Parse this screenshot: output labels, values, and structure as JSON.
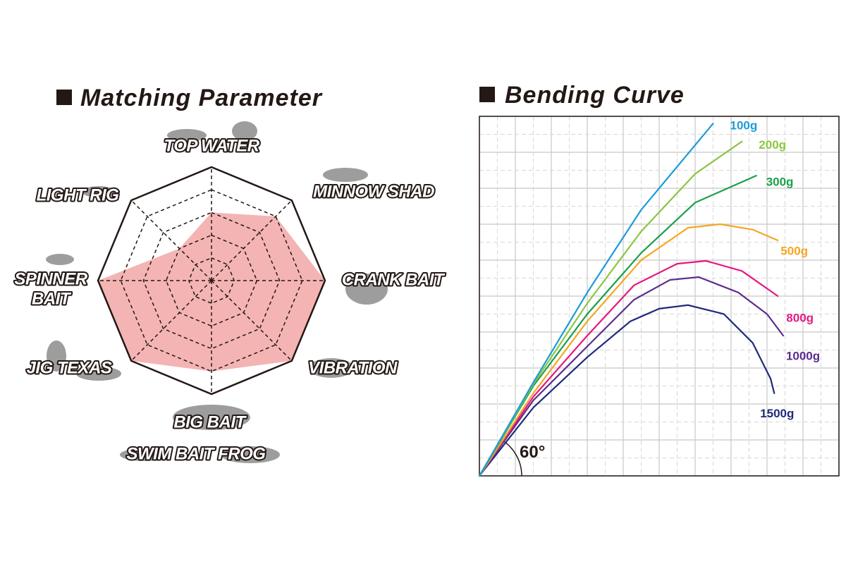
{
  "chart_data": [
    {
      "type": "radar",
      "title": "Matching Parameter",
      "categories": [
        [
          "TOP WATER"
        ],
        [
          "MINNOW SHAD"
        ],
        [
          "CRANK BAIT"
        ],
        [
          "VIBRATION"
        ],
        [
          "BIG BAIT",
          "SWIM BAIT FROG"
        ],
        [
          "JIG TEXAS"
        ],
        [
          "SPINNER",
          "BAIT"
        ],
        [
          "LIGHT RIG"
        ]
      ],
      "values": [
        3,
        4,
        5,
        5,
        4,
        5,
        5,
        2
      ],
      "rlim": [
        0,
        5
      ],
      "rticks": [
        1,
        2,
        3,
        4,
        5
      ],
      "color": "#f4b4b4"
    },
    {
      "type": "line",
      "title": "Bending Curve",
      "annotation": "60°",
      "xlim": [
        0,
        10
      ],
      "ylim": [
        0,
        10
      ],
      "xticks": [
        0,
        1,
        2,
        3,
        4,
        5,
        6,
        7,
        8,
        9,
        10
      ],
      "yticks": [
        0,
        1,
        2,
        3,
        4,
        5,
        6,
        7,
        8,
        9,
        10
      ],
      "grid": true,
      "series": [
        {
          "name": "100g",
          "color": "#1a9bd7",
          "x": [
            0,
            1.5,
            3,
            4.5,
            6.5
          ],
          "values": [
            0,
            2.6,
            5.1,
            7.4,
            9.8
          ]
        },
        {
          "name": "200g",
          "color": "#8cc63f",
          "x": [
            0,
            1.5,
            3,
            4.5,
            6,
            7.3
          ],
          "values": [
            0,
            2.55,
            4.8,
            6.8,
            8.4,
            9.3
          ]
        },
        {
          "name": "300g",
          "color": "#1aa04a",
          "x": [
            0,
            1.5,
            3,
            4.5,
            6,
            7.7
          ],
          "values": [
            0,
            2.5,
            4.5,
            6.2,
            7.6,
            8.35
          ]
        },
        {
          "name": "500g",
          "color": "#f5a623",
          "x": [
            0,
            1.5,
            3,
            4.5,
            5.8,
            6.7,
            7.6,
            8.3
          ],
          "values": [
            0,
            2.3,
            4.3,
            6.0,
            6.9,
            7.0,
            6.85,
            6.55
          ]
        },
        {
          "name": "800g",
          "color": "#e5197f",
          "x": [
            0,
            1.5,
            3,
            4.3,
            5.5,
            6.3,
            7.3,
            8.3
          ],
          "values": [
            0,
            2.2,
            3.9,
            5.3,
            5.9,
            5.98,
            5.7,
            5.0
          ]
        },
        {
          "name": "1000g",
          "color": "#5b2d8e",
          "x": [
            0,
            1.5,
            3,
            4.3,
            5.3,
            6.1,
            7.2,
            8.0,
            8.45
          ],
          "values": [
            0,
            2.1,
            3.6,
            4.9,
            5.45,
            5.53,
            5.1,
            4.5,
            3.9
          ]
        },
        {
          "name": "1500g",
          "color": "#1f2a7a",
          "x": [
            0,
            1.5,
            3,
            4.2,
            5,
            5.8,
            6.8,
            7.6,
            8.1,
            8.2
          ],
          "values": [
            0,
            1.9,
            3.3,
            4.3,
            4.65,
            4.75,
            4.5,
            3.7,
            2.7,
            2.3
          ]
        }
      ]
    }
  ]
}
